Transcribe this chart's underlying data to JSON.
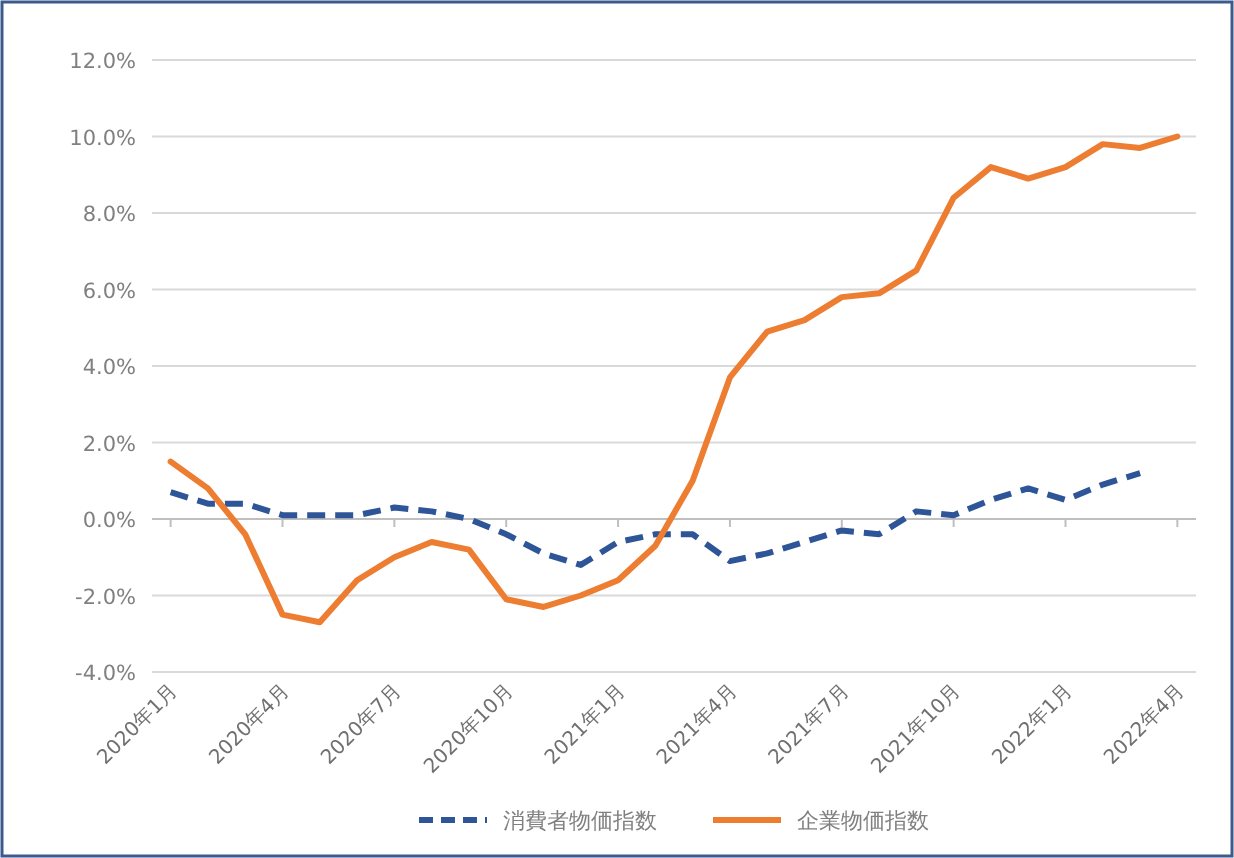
{
  "chart_data": {
    "type": "line",
    "categories": [
      "2020年1月",
      null,
      null,
      "2020年4月",
      null,
      null,
      "2020年7月",
      null,
      null,
      "2020年10月",
      null,
      null,
      "2021年1月",
      null,
      null,
      "2021年4月",
      null,
      null,
      "2021年7月",
      null,
      null,
      "2021年10月",
      null,
      null,
      "2022年1月",
      null,
      null,
      "2022年4月"
    ],
    "series": [
      {
        "name": "消費者物価指数",
        "color": "#2e5597",
        "line_style": "dashed",
        "values": [
          0.7,
          0.4,
          0.4,
          0.1,
          0.1,
          0.1,
          0.3,
          0.2,
          0.0,
          -0.4,
          -0.9,
          -1.2,
          -0.6,
          -0.4,
          -0.4,
          -1.1,
          -0.9,
          -0.6,
          -0.3,
          -0.4,
          0.2,
          0.1,
          0.5,
          0.8,
          0.5,
          0.9,
          1.2,
          null
        ]
      },
      {
        "name": "企業物価指数",
        "color": "#ed7d31",
        "line_style": "solid",
        "values": [
          1.5,
          0.8,
          -0.4,
          -2.5,
          -2.7,
          -1.6,
          -1.0,
          -0.6,
          -0.8,
          -2.1,
          -2.3,
          -2.0,
          -1.6,
          -0.7,
          1.0,
          3.7,
          4.9,
          5.2,
          5.8,
          5.9,
          6.5,
          8.4,
          9.2,
          8.9,
          9.2,
          9.8,
          9.7,
          10.0
        ]
      }
    ],
    "ylim": [
      -4,
      12
    ],
    "yticks": [
      {
        "value": -4,
        "label": "-4.0%"
      },
      {
        "value": -2,
        "label": "-2.0%"
      },
      {
        "value": 0,
        "label": "0.0%"
      },
      {
        "value": 2,
        "label": "2.0%"
      },
      {
        "value": 4,
        "label": "4.0%"
      },
      {
        "value": 6,
        "label": "6.0%"
      },
      {
        "value": 8,
        "label": "8.0%"
      },
      {
        "value": 10,
        "label": "10.0%"
      },
      {
        "value": 12,
        "label": "12.0%"
      }
    ],
    "grid": "y",
    "legend": "bottom"
  }
}
